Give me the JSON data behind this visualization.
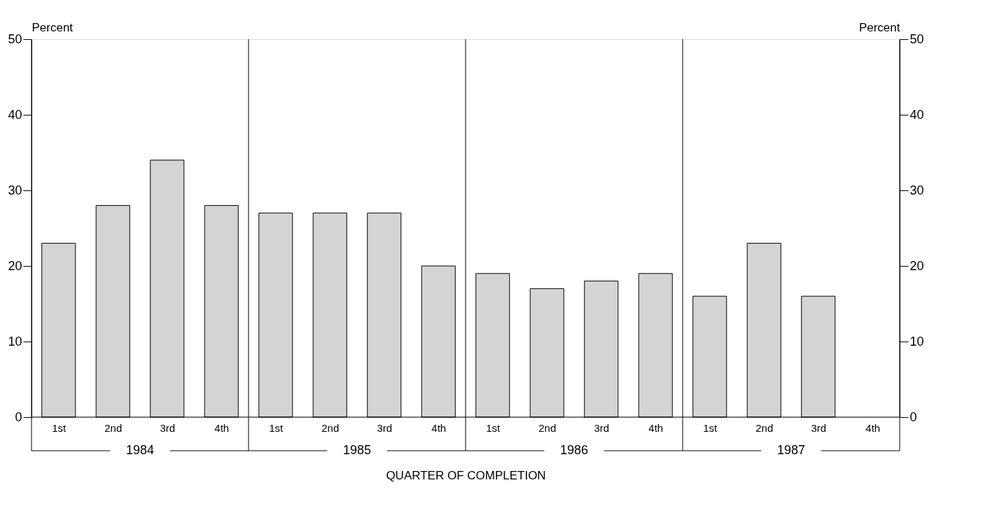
{
  "chart_data": {
    "type": "bar",
    "categories": [
      "1st",
      "2nd",
      "3rd",
      "4th",
      "1st",
      "2nd",
      "3rd",
      "4th",
      "1st",
      "2nd",
      "3rd",
      "4th",
      "1st",
      "2nd",
      "3rd",
      "4th"
    ],
    "values": [
      23,
      28,
      34,
      28,
      27,
      27,
      27,
      20,
      19,
      17,
      18,
      19,
      16,
      23,
      16,
      null
    ],
    "color": "#d4d4d4",
    "ylabel": "Percent",
    "y2label": "Percent",
    "xlabel": "QUARTER OF COMPLETION",
    "annotations": [
      "1984",
      "1985",
      "1986",
      "1987"
    ],
    "ylim": [
      0,
      50
    ],
    "yticks": [
      0,
      10,
      20,
      30,
      40,
      50
    ],
    "y2lim": [
      0,
      50
    ],
    "y2ticks": [
      0,
      10,
      20,
      30,
      40,
      50
    ],
    "grid": false
  }
}
